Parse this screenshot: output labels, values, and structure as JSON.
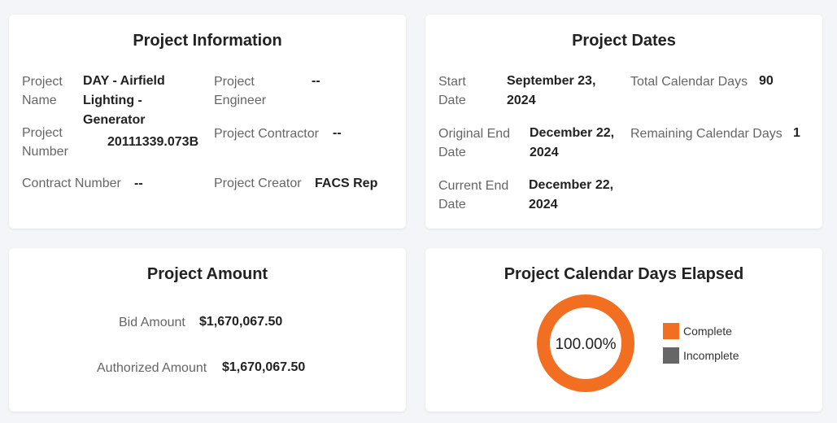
{
  "info": {
    "title": "Project Information",
    "project_name_label": "Project Name",
    "project_name": "DAY - Airfield Lighting - Generator",
    "project_engineer_label": "Project Engineer",
    "project_engineer": "--",
    "project_number_label": "Project Number",
    "project_number": "20111339.073B",
    "project_contractor_label": "Project Contractor",
    "project_contractor": "--",
    "contract_number_label": "Contract Number",
    "contract_number": "--",
    "project_creator_label": "Project Creator",
    "project_creator": "FACS Rep"
  },
  "dates": {
    "title": "Project Dates",
    "start_date_label": "Start Date",
    "start_date": "September 23, 2024",
    "original_end_label": "Original End Date",
    "original_end": "December 22, 2024",
    "current_end_label": "Current End Date",
    "current_end": "December 22, 2024",
    "total_days_label": "Total Calendar Days",
    "total_days": "90",
    "remaining_days_label": "Remaining Calendar Days",
    "remaining_days": "1"
  },
  "amount": {
    "title": "Project Amount",
    "bid_label": "Bid Amount",
    "bid_value": "$1,670,067.50",
    "authorized_label": "Authorized Amount",
    "authorized_value": "$1,670,067.50"
  },
  "elapsed": {
    "title": "Project Calendar Days Elapsed",
    "center_text": "100.00%",
    "legend": [
      {
        "label": "Complete",
        "color": "#f26f21"
      },
      {
        "label": "Incomplete",
        "color": "#666666"
      }
    ]
  },
  "chart_data": {
    "type": "pie",
    "categories": [
      "Complete",
      "Incomplete"
    ],
    "values": [
      100,
      0
    ],
    "title": "Project Calendar Days Elapsed",
    "colors": [
      "#f26f21",
      "#666666"
    ],
    "center_label": "100.00%",
    "legend_position": "right"
  }
}
